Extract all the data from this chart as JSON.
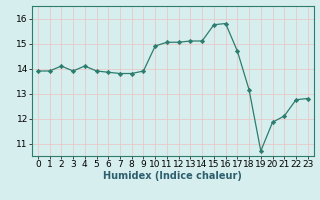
{
  "x": [
    0,
    1,
    2,
    3,
    4,
    5,
    6,
    7,
    8,
    9,
    10,
    11,
    12,
    13,
    14,
    15,
    16,
    17,
    18,
    19,
    20,
    21,
    22,
    23
  ],
  "y": [
    13.9,
    13.9,
    14.1,
    13.9,
    14.1,
    13.9,
    13.85,
    13.8,
    13.8,
    13.9,
    14.9,
    15.05,
    15.05,
    15.1,
    15.1,
    15.75,
    15.8,
    14.7,
    13.15,
    10.7,
    11.85,
    12.1,
    12.75,
    12.8
  ],
  "line_color": "#2d7d6e",
  "marker_color": "#2d7d6e",
  "bg_color": "#d6eeee",
  "grid_color": "#e8c8c8",
  "xlabel": "Humidex (Indice chaleur)",
  "ylim": [
    10.5,
    16.5
  ],
  "xlim": [
    -0.5,
    23.5
  ],
  "yticks": [
    11,
    12,
    13,
    14,
    15,
    16
  ],
  "xticks": [
    0,
    1,
    2,
    3,
    4,
    5,
    6,
    7,
    8,
    9,
    10,
    11,
    12,
    13,
    14,
    15,
    16,
    17,
    18,
    19,
    20,
    21,
    22,
    23
  ],
  "xlabel_fontsize": 7,
  "tick_fontsize": 6.5
}
